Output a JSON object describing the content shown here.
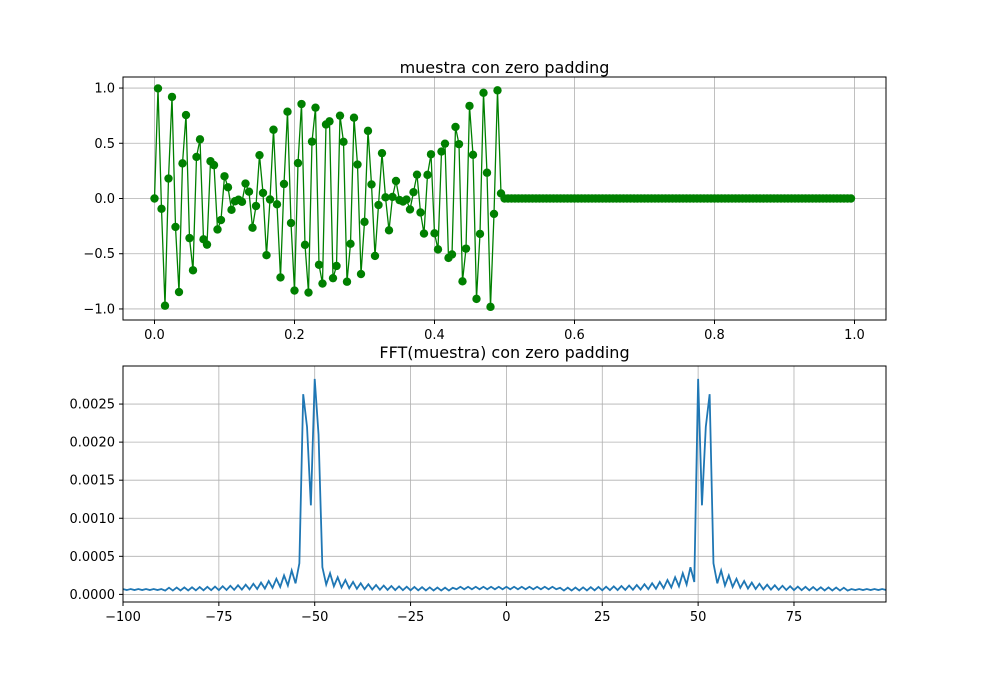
{
  "chart_data": [
    {
      "type": "line",
      "title": "muestra con zero padding",
      "xlabel": "",
      "ylabel": "",
      "xlim": [
        -0.045,
        1.045
      ],
      "ylim": [
        -1.1,
        1.1
      ],
      "grid": true,
      "xticks": [
        0.0,
        0.2,
        0.4,
        0.6,
        0.8,
        1.0
      ],
      "xtick_labels": [
        "0.0",
        "0.2",
        "0.4",
        "0.6",
        "0.8",
        "1.0"
      ],
      "yticks": [
        -1.0,
        -0.5,
        0.0,
        0.5,
        1.0
      ],
      "ytick_labels": [
        "−1.0",
        "−0.5",
        "0.0",
        "0.5",
        "1.0"
      ],
      "series": [
        {
          "color": "#008000",
          "marker": "circle",
          "sample_step": 0.005,
          "signal_end": 0.495,
          "total_samples": 200,
          "description_values": "y[n] = sin(2*pi*51.5*t) * cos(2*pi*2*t)-like beating signal for t < 0.5, then 0"
        }
      ]
    },
    {
      "type": "line",
      "title": "FFT(muestra) con zero padding",
      "xlabel": "",
      "ylabel": "",
      "xlim": [
        -100,
        99
      ],
      "ylim": [
        -0.0001,
        0.003
      ],
      "grid": true,
      "xticks": [
        -100,
        -75,
        -50,
        -25,
        0,
        25,
        50,
        75
      ],
      "xtick_labels": [
        "−100",
        "−75",
        "−50",
        "−25",
        "0",
        "25",
        "50",
        "75"
      ],
      "yticks": [
        0.0,
        0.0005,
        0.001,
        0.0015,
        0.002,
        0.0025
      ],
      "ytick_labels": [
        "0.0000",
        "0.0005",
        "0.0010",
        "0.0015",
        "0.0020",
        "0.0025"
      ],
      "series": [
        {
          "color": "#1f77b4",
          "peaks": [
            {
              "x": -53,
              "y": 0.00263
            },
            {
              "x": -52,
              "y": 0.0022
            },
            {
              "x": -51,
              "y": 0.00117
            },
            {
              "x": -50,
              "y": 0.00283
            },
            {
              "x": -49,
              "y": 0.0021
            },
            {
              "x": 50,
              "y": 0.00283
            },
            {
              "x": 51,
              "y": 0.00117
            },
            {
              "x": 52,
              "y": 0.0022
            },
            {
              "x": 53,
              "y": 0.00263
            }
          ]
        }
      ]
    }
  ]
}
